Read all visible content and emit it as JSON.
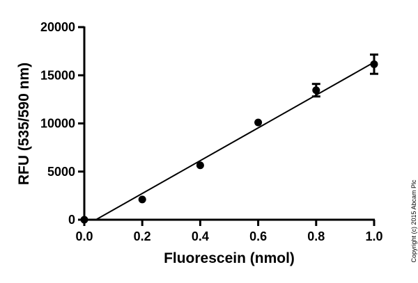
{
  "chart_data": {
    "type": "scatter",
    "title": "",
    "xlabel": "Fluorescein (nmol)",
    "ylabel": "RFU (535/590 nm)",
    "xlim": [
      0,
      1.0
    ],
    "ylim": [
      0,
      20000
    ],
    "x_ticks": [
      "0.0",
      "0.2",
      "0.4",
      "0.6",
      "0.8",
      "1.0"
    ],
    "y_ticks": [
      "0",
      "5000",
      "10000",
      "15000",
      "20000"
    ],
    "x_tick_values": [
      0,
      0.2,
      0.4,
      0.6,
      0.8,
      1.0
    ],
    "y_tick_values": [
      0,
      5000,
      10000,
      15000,
      20000
    ],
    "points": [
      {
        "x": 0.0,
        "y": 0,
        "err": 0
      },
      {
        "x": 0.2,
        "y": 2100,
        "err": 0
      },
      {
        "x": 0.4,
        "y": 5650,
        "err": 0
      },
      {
        "x": 0.6,
        "y": 10100,
        "err": 0
      },
      {
        "x": 0.8,
        "y": 13450,
        "err": 650
      },
      {
        "x": 1.0,
        "y": 16150,
        "err": 1000
      }
    ],
    "fit_line": {
      "x": [
        0.04,
        1.0
      ],
      "y": [
        0,
        16350
      ]
    },
    "grid": false,
    "legend": "none"
  },
  "copyright": "Copyright (c) 2015 Abcam Plc"
}
